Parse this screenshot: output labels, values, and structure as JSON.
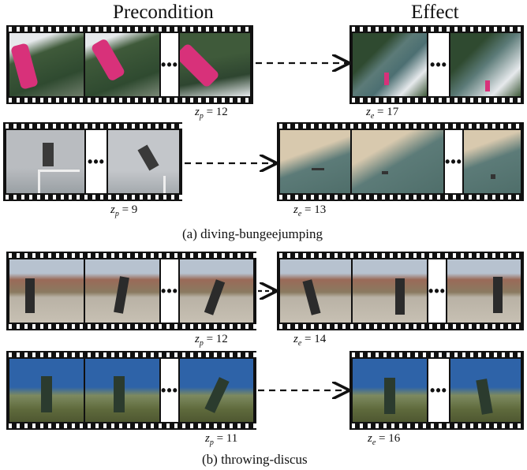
{
  "headings": {
    "precondition": "Precondition",
    "effect": "Effect"
  },
  "captions": {
    "a": "(a) diving-bungeejumping",
    "b": "(b) throwing-discus"
  },
  "ellipsis": "•••",
  "rows": [
    {
      "zp": "= 12",
      "ze": "= 17"
    },
    {
      "zp": "= 9",
      "ze": "= 13"
    },
    {
      "zp": "= 12",
      "ze": "= 14"
    },
    {
      "zp": "= 11",
      "ze": "= 16"
    }
  ],
  "z_labels": {
    "zp_var": "z",
    "zp_sub": "p",
    "ze_var": "z",
    "ze_sub": "e"
  },
  "colors": {
    "forest": "#3f5a3a",
    "snow": "#e6e9ec",
    "jumper": "#d8317a",
    "sky_fog": "#b9bcc0",
    "water": "#5c7b78",
    "sand": "#d8c9ae",
    "mountain": "#9a6a58",
    "field_sky": "#b7c2cf",
    "ground": "#b9b2a5",
    "blue_sky": "#2e63a8",
    "grass": "#5f6a3c",
    "athlete": "#2b3b2e"
  }
}
